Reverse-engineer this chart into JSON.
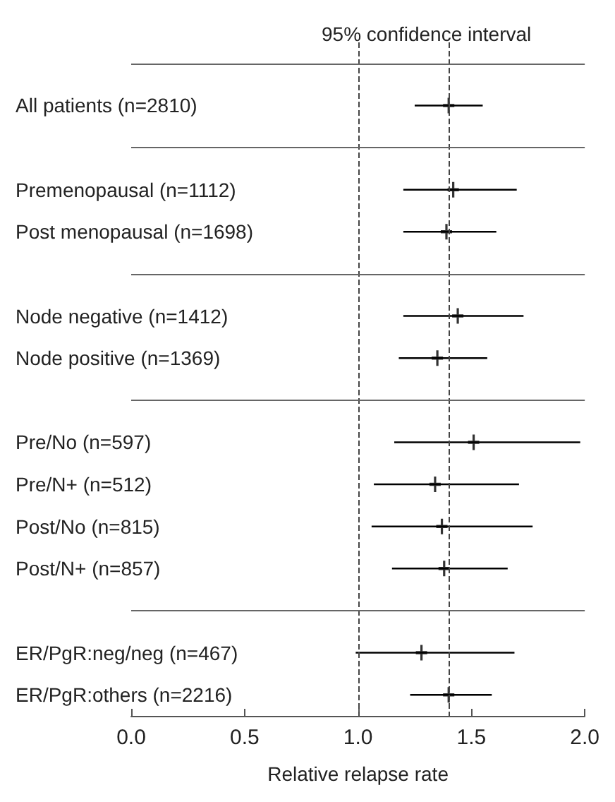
{
  "chart_data": {
    "type": "scatter",
    "orientation": "horizontal",
    "title": "95% confidence interval",
    "xlabel": "Relative relapse rate",
    "categories": [
      null,
      "All patients (n=2810)",
      null,
      "Premenopausal (n=1112)",
      "Post menopausal (n=1698)",
      null,
      "Node negative (n=1412)",
      "Node positive (n=1369)",
      null,
      "Pre/No (n=597)",
      "Pre/N+ (n=512)",
      "Post/No (n=815)",
      "Post/N+ (n=857)",
      null,
      "ER/PgR:neg/neg (n=467)",
      "ER/PgR:others (n=2216)"
    ],
    "values": [
      null,
      1.4,
      null,
      1.42,
      1.39,
      null,
      1.44,
      1.35,
      null,
      1.51,
      1.34,
      1.37,
      1.38,
      null,
      1.28,
      1.4
    ],
    "errors": [
      null,
      [
        1.25,
        1.55
      ],
      null,
      [
        1.2,
        1.7
      ],
      [
        1.2,
        1.61
      ],
      null,
      [
        1.2,
        1.73
      ],
      [
        1.18,
        1.57
      ],
      null,
      [
        1.16,
        1.98
      ],
      [
        1.07,
        1.71
      ],
      [
        1.06,
        1.77
      ],
      [
        1.15,
        1.66
      ],
      null,
      [
        0.99,
        1.69
      ],
      [
        1.23,
        1.59
      ]
    ],
    "color": "#000000",
    "marker": "cross",
    "xlim": [
      0,
      2
    ],
    "xticks": [
      {
        "value": 0,
        "label": "0.0"
      },
      {
        "value": 0.5,
        "label": "0.5"
      },
      {
        "value": 1,
        "label": "1.0"
      },
      {
        "value": 1.5,
        "label": "1.5"
      },
      {
        "value": 2,
        "label": "2.0"
      }
    ],
    "ref_lines": [
      {
        "axis": "x",
        "value": 1.0,
        "line_style": "dashed"
      },
      {
        "axis": "x",
        "value": 1.4,
        "line_style": "dashed"
      }
    ]
  }
}
